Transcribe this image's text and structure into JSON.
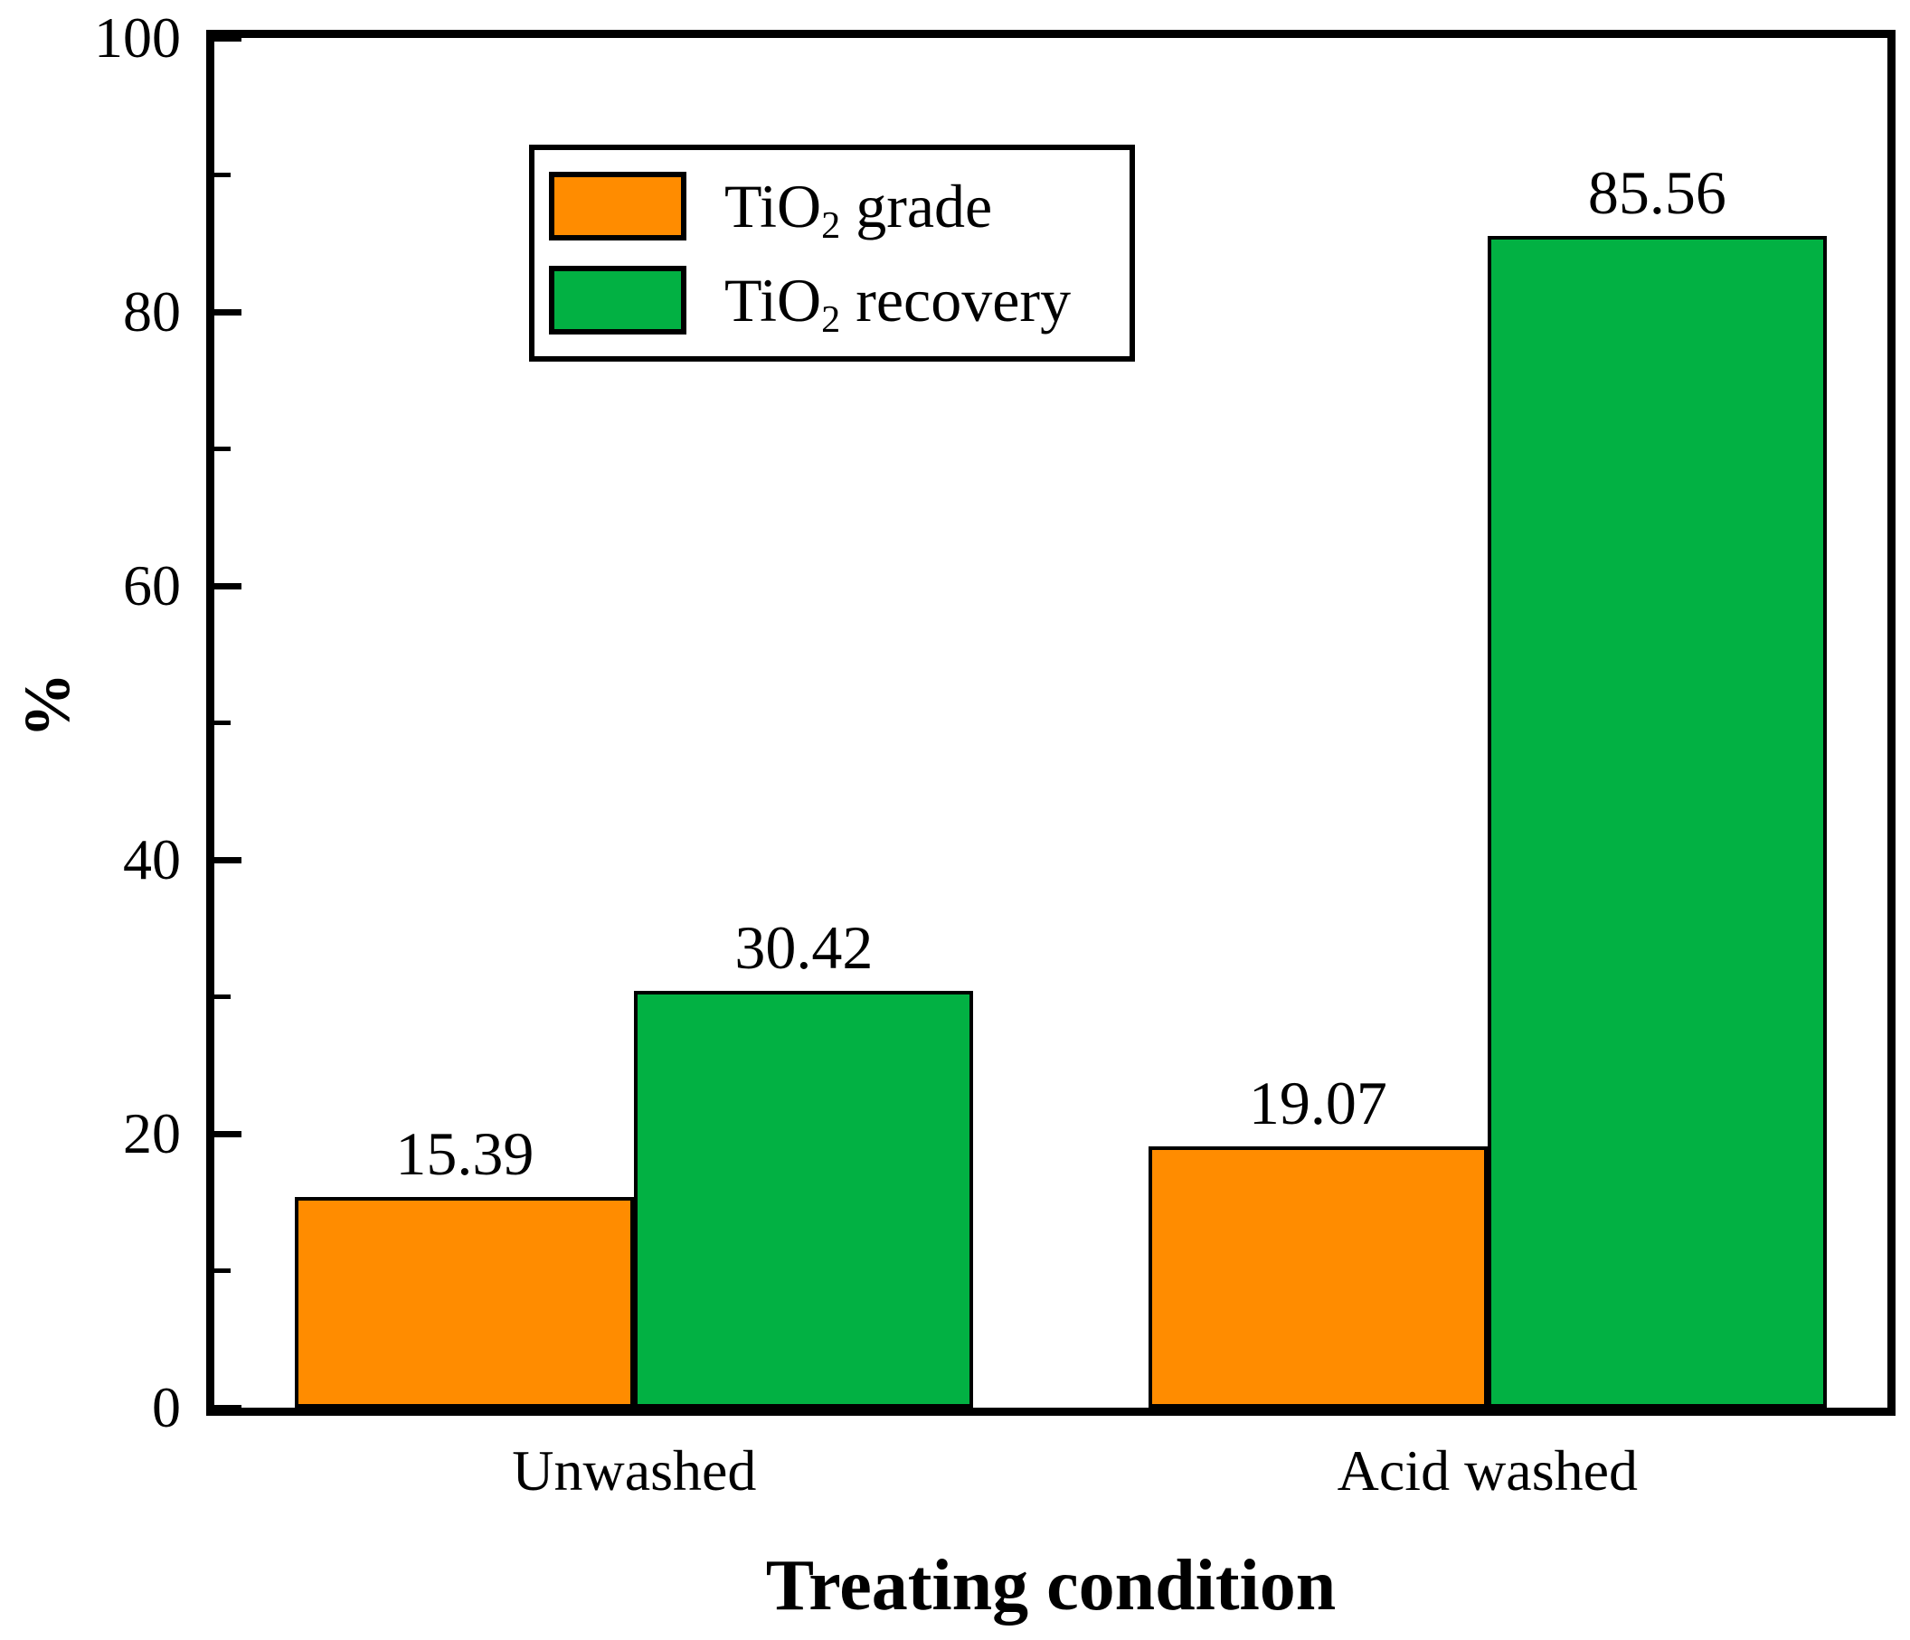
{
  "chart_data": {
    "type": "bar",
    "categories": [
      "Unwashed",
      "Acid washed"
    ],
    "series": [
      {
        "name": "TiO2 grade",
        "color": "#FF8C00",
        "values": [
          15.39,
          19.07
        ],
        "value_labels": [
          "15.39",
          "19.07"
        ]
      },
      {
        "name": "TiO2 recovery",
        "color": "#02B143",
        "values": [
          30.42,
          85.56
        ],
        "value_labels": [
          "30.42",
          "85.56"
        ]
      }
    ],
    "title": "",
    "xlabel": "Treating condition",
    "ylabel": "%",
    "ylim": [
      0,
      100
    ],
    "yticks": [
      0,
      20,
      40,
      60,
      80,
      100
    ],
    "ytick_labels": [
      "0",
      "20",
      "40",
      "60",
      "80",
      "100"
    ],
    "yminorticks": [
      10,
      30,
      50,
      70,
      90
    ],
    "grid": false,
    "legend_position": "top-left",
    "bar_outline_color": "#000000",
    "axis_color": "#000000"
  },
  "legend": {
    "items": [
      {
        "prefix": "TiO",
        "sub": "2",
        "rest": " grade"
      },
      {
        "prefix": "TiO",
        "sub": "2",
        "rest": " recovery"
      }
    ]
  },
  "axis_titles": {
    "x": "Treating condition",
    "y": "%"
  }
}
